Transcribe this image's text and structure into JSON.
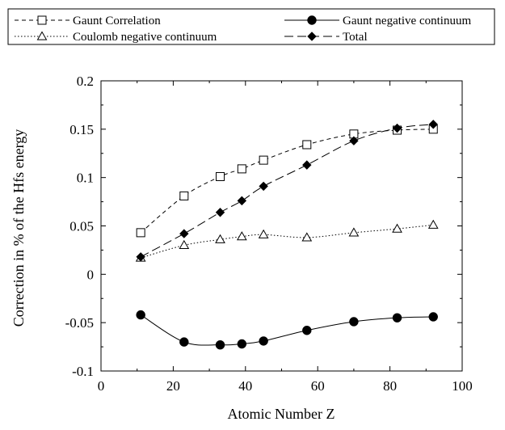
{
  "chart_data": {
    "type": "line",
    "title": "",
    "xlabel": "Atomic Number Z",
    "ylabel": "Correction in % of the Hfs energy",
    "xlim": [
      0,
      100
    ],
    "ylim": [
      -0.1,
      0.2
    ],
    "xticks": [
      "0",
      "20",
      "40",
      "60",
      "80",
      "100"
    ],
    "yticks": [
      "-0.1",
      "-0.05",
      "0",
      "0.05",
      "0.1",
      "0.15",
      "0.2"
    ],
    "grid": false,
    "legend_position": "top",
    "series": [
      {
        "name": "Gaunt Correlation",
        "marker": "open-square",
        "line_style": "short-dash",
        "x": [
          11,
          23,
          33,
          39,
          45,
          57,
          70,
          82,
          92
        ],
        "y": [
          0.043,
          0.081,
          0.101,
          0.109,
          0.118,
          0.134,
          0.145,
          0.149,
          0.15
        ]
      },
      {
        "name": "Gaunt negative continuum",
        "marker": "filled-circle",
        "line_style": "solid",
        "x": [
          11,
          23,
          33,
          39,
          45,
          57,
          70,
          82,
          92
        ],
        "y": [
          -0.042,
          -0.07,
          -0.073,
          -0.072,
          -0.069,
          -0.058,
          -0.049,
          -0.045,
          -0.044
        ]
      },
      {
        "name": "Coulomb negative continuum",
        "marker": "open-triangle",
        "line_style": "dotted",
        "x": [
          11,
          23,
          33,
          39,
          45,
          57,
          70,
          82,
          92
        ],
        "y": [
          0.017,
          0.03,
          0.036,
          0.039,
          0.041,
          0.038,
          0.043,
          0.047,
          0.051
        ]
      },
      {
        "name": "Total",
        "marker": "filled-diamond",
        "line_style": "long-dash",
        "x": [
          11,
          23,
          33,
          39,
          45,
          57,
          70,
          82,
          92
        ],
        "y": [
          0.018,
          0.042,
          0.064,
          0.076,
          0.091,
          0.113,
          0.138,
          0.151,
          0.155
        ]
      }
    ]
  }
}
